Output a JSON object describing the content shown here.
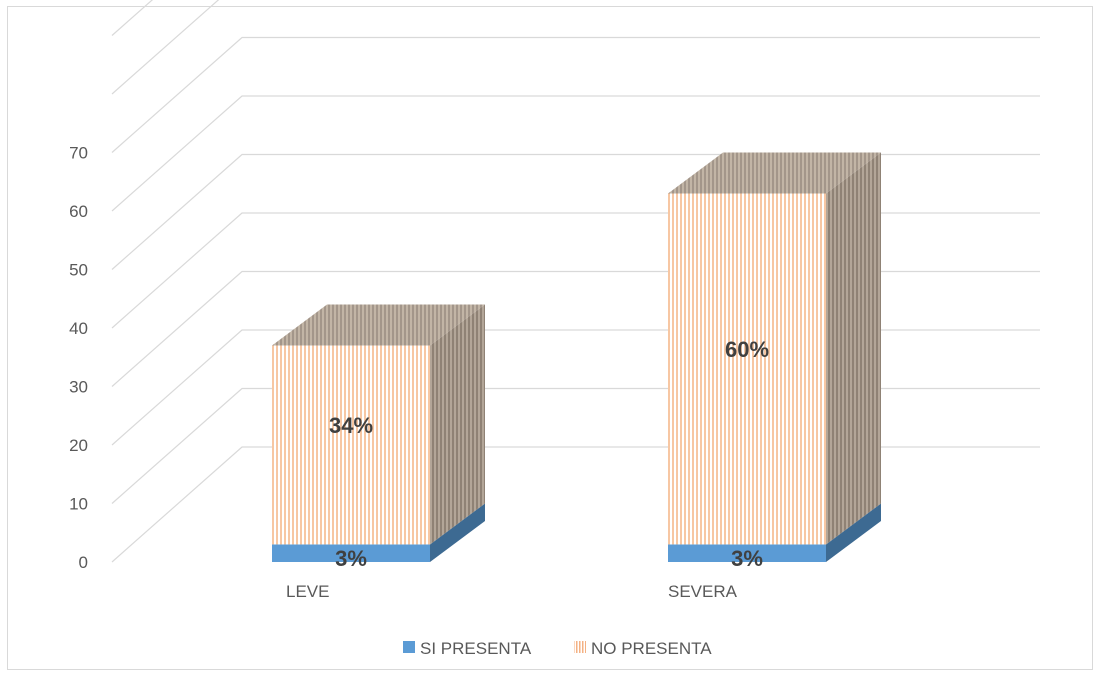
{
  "chart_data": {
    "type": "bar",
    "stacked": true,
    "three_d": true,
    "categories": [
      "LEVE",
      "SEVERA"
    ],
    "series": [
      {
        "name": "SI PRESENTA",
        "values": [
          3,
          3
        ],
        "labels": [
          "3%",
          "3%"
        ],
        "color": "#5b9bd5",
        "side_color": "#3d6a92"
      },
      {
        "name": "NO PRESENTA",
        "values": [
          34,
          60
        ],
        "labels": [
          "34%",
          "60%"
        ],
        "color": "#f4b183",
        "pattern": "vertical-stripes",
        "side_color": "#a79a8c"
      }
    ],
    "y_ticks": [
      "0",
      "10",
      "20",
      "30",
      "40",
      "50",
      "60",
      "70"
    ],
    "ylim": [
      0,
      70
    ],
    "grid": true,
    "legend_position": "bottom"
  }
}
